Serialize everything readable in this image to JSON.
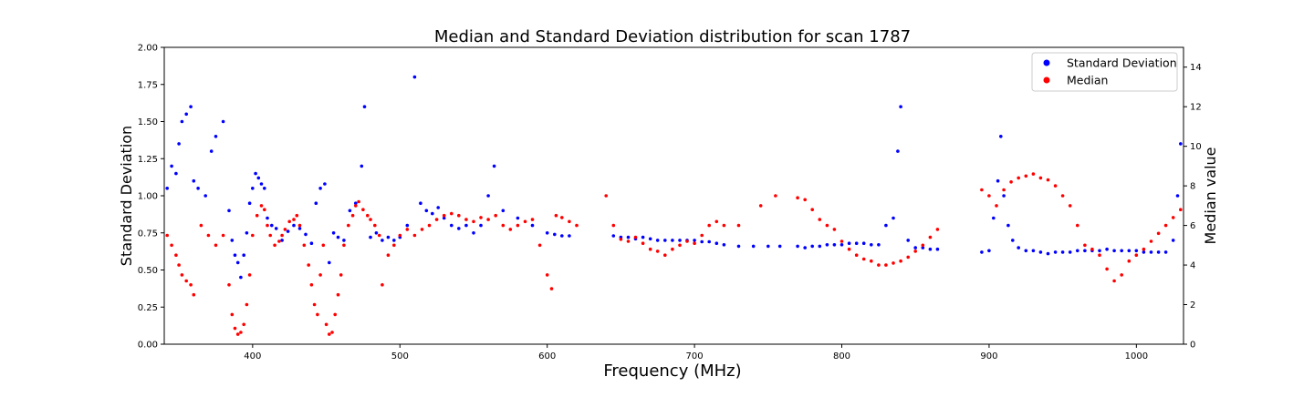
{
  "chart_data": {
    "type": "scatter",
    "title": "Median and Standard Deviation distribution for scan 1787",
    "xlabel": "Frequency (MHz)",
    "ylabel_left": "Standard Deviation",
    "ylabel_right": "Median value",
    "xlim": [
      340,
      1032
    ],
    "ylim_left": [
      0,
      2
    ],
    "ylim_right": [
      0,
      15
    ],
    "x_ticks": [
      "400",
      "500",
      "600",
      "700",
      "800",
      "900",
      "1000"
    ],
    "y_left_ticks": [
      "0.00",
      "0.25",
      "0.50",
      "0.75",
      "1.00",
      "1.25",
      "1.50",
      "1.75",
      "2.00"
    ],
    "y_right_ticks": [
      "0",
      "2",
      "4",
      "6",
      "8",
      "10",
      "12",
      "14"
    ],
    "grid": false,
    "legend_position": "top-right",
    "series": [
      {
        "name": "Standard Deviation",
        "axis": "left",
        "color": "#0000ff",
        "points": [
          [
            342,
            1.05
          ],
          [
            345,
            1.2
          ],
          [
            348,
            1.15
          ],
          [
            350,
            1.35
          ],
          [
            352,
            1.5
          ],
          [
            355,
            1.55
          ],
          [
            358,
            1.6
          ],
          [
            360,
            1.1
          ],
          [
            363,
            1.05
          ],
          [
            368,
            1.0
          ],
          [
            372,
            1.3
          ],
          [
            375,
            1.4
          ],
          [
            380,
            1.5
          ],
          [
            384,
            0.9
          ],
          [
            386,
            0.7
          ],
          [
            388,
            0.6
          ],
          [
            390,
            0.55
          ],
          [
            392,
            0.45
          ],
          [
            394,
            0.6
          ],
          [
            396,
            0.75
          ],
          [
            398,
            0.95
          ],
          [
            400,
            1.05
          ],
          [
            402,
            1.15
          ],
          [
            404,
            1.12
          ],
          [
            406,
            1.08
          ],
          [
            408,
            1.05
          ],
          [
            410,
            0.85
          ],
          [
            413,
            0.8
          ],
          [
            416,
            0.78
          ],
          [
            420,
            0.7
          ],
          [
            424,
            0.76
          ],
          [
            428,
            0.8
          ],
          [
            432,
            0.78
          ],
          [
            436,
            0.74
          ],
          [
            440,
            0.68
          ],
          [
            443,
            0.95
          ],
          [
            446,
            1.05
          ],
          [
            449,
            1.08
          ],
          [
            452,
            0.55
          ],
          [
            455,
            0.75
          ],
          [
            458,
            0.72
          ],
          [
            462,
            0.7
          ],
          [
            466,
            0.9
          ],
          [
            470,
            0.95
          ],
          [
            474,
            1.2
          ],
          [
            476,
            1.6
          ],
          [
            480,
            0.72
          ],
          [
            484,
            0.75
          ],
          [
            488,
            0.7
          ],
          [
            492,
            0.72
          ],
          [
            496,
            0.7
          ],
          [
            500,
            0.72
          ],
          [
            505,
            0.8
          ],
          [
            510,
            1.8
          ],
          [
            514,
            0.95
          ],
          [
            518,
            0.9
          ],
          [
            522,
            0.88
          ],
          [
            526,
            0.92
          ],
          [
            530,
            0.85
          ],
          [
            535,
            0.8
          ],
          [
            540,
            0.78
          ],
          [
            545,
            0.8
          ],
          [
            550,
            0.75
          ],
          [
            555,
            0.8
          ],
          [
            560,
            1.0
          ],
          [
            564,
            1.2
          ],
          [
            570,
            0.9
          ],
          [
            580,
            0.85
          ],
          [
            590,
            0.8
          ],
          [
            600,
            0.75
          ],
          [
            605,
            0.74
          ],
          [
            610,
            0.73
          ],
          [
            615,
            0.73
          ],
          [
            645,
            0.73
          ],
          [
            650,
            0.72
          ],
          [
            655,
            0.72
          ],
          [
            660,
            0.71
          ],
          [
            665,
            0.72
          ],
          [
            670,
            0.71
          ],
          [
            675,
            0.7
          ],
          [
            680,
            0.7
          ],
          [
            685,
            0.7
          ],
          [
            690,
            0.7
          ],
          [
            695,
            0.7
          ],
          [
            700,
            0.7
          ],
          [
            705,
            0.69
          ],
          [
            710,
            0.69
          ],
          [
            715,
            0.68
          ],
          [
            720,
            0.67
          ],
          [
            730,
            0.66
          ],
          [
            740,
            0.66
          ],
          [
            750,
            0.66
          ],
          [
            758,
            0.66
          ],
          [
            770,
            0.66
          ],
          [
            775,
            0.65
          ],
          [
            780,
            0.66
          ],
          [
            785,
            0.66
          ],
          [
            790,
            0.67
          ],
          [
            795,
            0.67
          ],
          [
            800,
            0.67
          ],
          [
            805,
            0.68
          ],
          [
            810,
            0.68
          ],
          [
            815,
            0.68
          ],
          [
            820,
            0.67
          ],
          [
            825,
            0.67
          ],
          [
            830,
            0.8
          ],
          [
            835,
            0.85
          ],
          [
            838,
            1.3
          ],
          [
            840,
            1.6
          ],
          [
            845,
            0.7
          ],
          [
            850,
            0.65
          ],
          [
            855,
            0.65
          ],
          [
            860,
            0.64
          ],
          [
            865,
            0.64
          ],
          [
            895,
            0.62
          ],
          [
            900,
            0.63
          ],
          [
            903,
            0.85
          ],
          [
            906,
            1.1
          ],
          [
            908,
            1.4
          ],
          [
            910,
            1.0
          ],
          [
            913,
            0.8
          ],
          [
            916,
            0.7
          ],
          [
            920,
            0.65
          ],
          [
            925,
            0.63
          ],
          [
            930,
            0.63
          ],
          [
            935,
            0.62
          ],
          [
            940,
            0.61
          ],
          [
            945,
            0.62
          ],
          [
            950,
            0.62
          ],
          [
            955,
            0.62
          ],
          [
            960,
            0.63
          ],
          [
            965,
            0.63
          ],
          [
            970,
            0.63
          ],
          [
            975,
            0.63
          ],
          [
            980,
            0.64
          ],
          [
            985,
            0.63
          ],
          [
            990,
            0.63
          ],
          [
            995,
            0.63
          ],
          [
            1000,
            0.63
          ],
          [
            1005,
            0.62
          ],
          [
            1010,
            0.62
          ],
          [
            1015,
            0.62
          ],
          [
            1020,
            0.62
          ],
          [
            1025,
            0.7
          ],
          [
            1028,
            1.0
          ],
          [
            1030,
            1.35
          ]
        ]
      },
      {
        "name": "Median",
        "axis": "right",
        "color": "#ff0000",
        "points": [
          [
            342,
            5.5
          ],
          [
            345,
            5.0
          ],
          [
            348,
            4.5
          ],
          [
            350,
            4.0
          ],
          [
            352,
            3.5
          ],
          [
            355,
            3.2
          ],
          [
            358,
            3.0
          ],
          [
            360,
            2.5
          ],
          [
            365,
            6.0
          ],
          [
            370,
            5.5
          ],
          [
            375,
            5.0
          ],
          [
            380,
            5.5
          ],
          [
            384,
            3.0
          ],
          [
            386,
            1.5
          ],
          [
            388,
            0.8
          ],
          [
            390,
            0.5
          ],
          [
            392,
            0.6
          ],
          [
            394,
            1.0
          ],
          [
            396,
            2.0
          ],
          [
            398,
            3.5
          ],
          [
            400,
            5.5
          ],
          [
            403,
            6.5
          ],
          [
            406,
            7.0
          ],
          [
            408,
            6.8
          ],
          [
            410,
            6.0
          ],
          [
            412,
            5.5
          ],
          [
            415,
            5.0
          ],
          [
            418,
            5.2
          ],
          [
            420,
            5.5
          ],
          [
            422,
            5.8
          ],
          [
            425,
            6.2
          ],
          [
            428,
            6.3
          ],
          [
            430,
            6.5
          ],
          [
            432,
            6.0
          ],
          [
            435,
            5.0
          ],
          [
            438,
            4.0
          ],
          [
            440,
            3.0
          ],
          [
            442,
            2.0
          ],
          [
            444,
            1.5
          ],
          [
            446,
            3.5
          ],
          [
            448,
            5.0
          ],
          [
            450,
            1.0
          ],
          [
            452,
            0.5
          ],
          [
            454,
            0.6
          ],
          [
            456,
            1.5
          ],
          [
            458,
            2.5
          ],
          [
            460,
            3.5
          ],
          [
            462,
            5.0
          ],
          [
            465,
            6.0
          ],
          [
            468,
            6.5
          ],
          [
            470,
            7.0
          ],
          [
            472,
            7.2
          ],
          [
            475,
            6.8
          ],
          [
            478,
            6.5
          ],
          [
            480,
            6.3
          ],
          [
            483,
            6.0
          ],
          [
            486,
            5.5
          ],
          [
            488,
            3.0
          ],
          [
            492,
            4.5
          ],
          [
            496,
            5.0
          ],
          [
            500,
            5.5
          ],
          [
            505,
            5.8
          ],
          [
            510,
            5.5
          ],
          [
            515,
            5.8
          ],
          [
            520,
            6.0
          ],
          [
            525,
            6.3
          ],
          [
            530,
            6.5
          ],
          [
            535,
            6.6
          ],
          [
            540,
            6.5
          ],
          [
            545,
            6.3
          ],
          [
            550,
            6.2
          ],
          [
            555,
            6.4
          ],
          [
            560,
            6.3
          ],
          [
            565,
            6.5
          ],
          [
            570,
            6.0
          ],
          [
            575,
            5.8
          ],
          [
            580,
            6.0
          ],
          [
            585,
            6.2
          ],
          [
            590,
            6.3
          ],
          [
            595,
            5.0
          ],
          [
            600,
            3.5
          ],
          [
            603,
            2.8
          ],
          [
            606,
            6.5
          ],
          [
            610,
            6.4
          ],
          [
            615,
            6.2
          ],
          [
            620,
            6.0
          ],
          [
            640,
            7.5
          ],
          [
            645,
            6.0
          ],
          [
            650,
            5.3
          ],
          [
            655,
            5.2
          ],
          [
            660,
            5.4
          ],
          [
            665,
            5.1
          ],
          [
            670,
            4.8
          ],
          [
            675,
            4.7
          ],
          [
            680,
            4.5
          ],
          [
            685,
            4.8
          ],
          [
            690,
            5.0
          ],
          [
            695,
            5.2
          ],
          [
            700,
            5.1
          ],
          [
            705,
            5.5
          ],
          [
            710,
            6.0
          ],
          [
            715,
            6.2
          ],
          [
            720,
            6.0
          ],
          [
            730,
            6.0
          ],
          [
            745,
            7.0
          ],
          [
            755,
            7.5
          ],
          [
            770,
            7.4
          ],
          [
            775,
            7.3
          ],
          [
            780,
            6.8
          ],
          [
            785,
            6.3
          ],
          [
            790,
            6.0
          ],
          [
            795,
            5.8
          ],
          [
            800,
            5.2
          ],
          [
            805,
            4.8
          ],
          [
            810,
            4.5
          ],
          [
            815,
            4.3
          ],
          [
            820,
            4.2
          ],
          [
            825,
            4.0
          ],
          [
            830,
            4.0
          ],
          [
            835,
            4.1
          ],
          [
            840,
            4.2
          ],
          [
            845,
            4.4
          ],
          [
            850,
            4.7
          ],
          [
            855,
            5.0
          ],
          [
            860,
            5.4
          ],
          [
            865,
            5.8
          ],
          [
            895,
            7.8
          ],
          [
            900,
            7.5
          ],
          [
            905,
            7.0
          ],
          [
            910,
            7.8
          ],
          [
            915,
            8.2
          ],
          [
            920,
            8.4
          ],
          [
            925,
            8.5
          ],
          [
            930,
            8.6
          ],
          [
            935,
            8.4
          ],
          [
            940,
            8.3
          ],
          [
            945,
            8.0
          ],
          [
            950,
            7.5
          ],
          [
            955,
            7.0
          ],
          [
            960,
            6.0
          ],
          [
            965,
            5.0
          ],
          [
            970,
            4.8
          ],
          [
            975,
            4.5
          ],
          [
            980,
            3.8
          ],
          [
            985,
            3.2
          ],
          [
            990,
            3.5
          ],
          [
            995,
            4.2
          ],
          [
            1000,
            4.5
          ],
          [
            1005,
            4.8
          ],
          [
            1010,
            5.2
          ],
          [
            1015,
            5.6
          ],
          [
            1020,
            6.0
          ],
          [
            1025,
            6.4
          ],
          [
            1030,
            6.8
          ]
        ]
      }
    ]
  }
}
